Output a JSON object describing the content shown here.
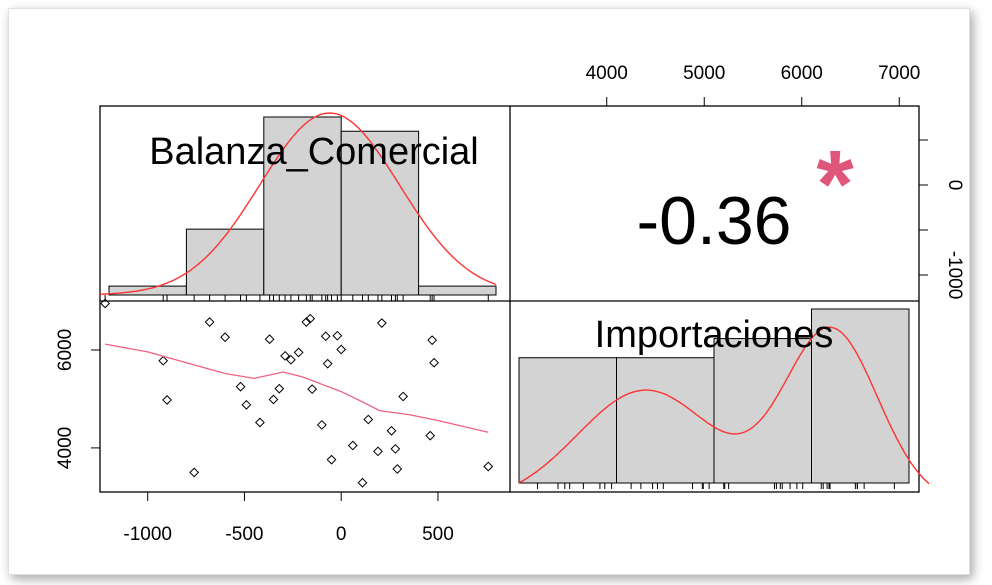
{
  "chart_data": {
    "type": "scatter-matrix",
    "variables": [
      "Balanza_Comercial",
      "Importaciones"
    ],
    "correlation": {
      "value": "-0.36",
      "significance": "*"
    },
    "axes": {
      "x_bottom_ticks": [
        "-1000",
        "-500",
        "0",
        "500"
      ],
      "x_top_ticks": [
        "4000",
        "5000",
        "6000",
        "7000"
      ],
      "y_left_ticks": [
        "4000",
        "6000"
      ],
      "y_right_ticks": [
        "-1000",
        "0"
      ],
      "balanza_range": [
        -1300,
        800
      ],
      "importaciones_range": [
        3100,
        7050
      ]
    },
    "colors": {
      "fit_line": "#ff3333",
      "smooth_line": "#f06080",
      "bar_fill": "#d3d3d3",
      "star": "#e0567a"
    },
    "histograms": {
      "Balanza_Comercial": {
        "bins": [
          [
            -1200,
            -800,
            0.05
          ],
          [
            -800,
            -400,
            0.37
          ],
          [
            -400,
            0,
            1.0
          ],
          [
            0,
            400,
            0.92
          ],
          [
            400,
            800,
            0.05
          ]
        ],
        "density_peak": -50
      },
      "Importaciones": {
        "bins": [
          [
            3100,
            4100,
            0.72
          ],
          [
            4100,
            5100,
            0.72
          ],
          [
            5100,
            6100,
            0.83
          ],
          [
            6100,
            7100,
            1.0
          ]
        ]
      }
    },
    "scatter_points": [
      [
        -1220,
        6950
      ],
      [
        -920,
        5780
      ],
      [
        -900,
        4980
      ],
      [
        -760,
        3500
      ],
      [
        -680,
        6570
      ],
      [
        -600,
        6260
      ],
      [
        -520,
        5250
      ],
      [
        -490,
        4880
      ],
      [
        -420,
        4520
      ],
      [
        -370,
        6220
      ],
      [
        -350,
        4990
      ],
      [
        -320,
        5210
      ],
      [
        -290,
        5880
      ],
      [
        -260,
        5800
      ],
      [
        -220,
        5950
      ],
      [
        -180,
        6570
      ],
      [
        -160,
        6640
      ],
      [
        -150,
        5200
      ],
      [
        -100,
        4470
      ],
      [
        -80,
        6280
      ],
      [
        -70,
        5720
      ],
      [
        -50,
        3760
      ],
      [
        -20,
        6290
      ],
      [
        0,
        6010
      ],
      [
        60,
        4050
      ],
      [
        110,
        3290
      ],
      [
        140,
        4580
      ],
      [
        190,
        3930
      ],
      [
        210,
        6550
      ],
      [
        260,
        4350
      ],
      [
        280,
        3980
      ],
      [
        290,
        3570
      ],
      [
        320,
        5050
      ],
      [
        460,
        4250
      ],
      [
        470,
        6200
      ],
      [
        480,
        5740
      ],
      [
        760,
        3620
      ]
    ],
    "smooth_line": [
      [
        -1220,
        6120
      ],
      [
        -1000,
        5960
      ],
      [
        -800,
        5740
      ],
      [
        -600,
        5520
      ],
      [
        -450,
        5420
      ],
      [
        -300,
        5550
      ],
      [
        -200,
        5450
      ],
      [
        -100,
        5300
      ],
      [
        0,
        5150
      ],
      [
        100,
        4960
      ],
      [
        200,
        4760
      ],
      [
        350,
        4680
      ],
      [
        500,
        4560
      ],
      [
        650,
        4420
      ],
      [
        760,
        4320
      ]
    ]
  }
}
